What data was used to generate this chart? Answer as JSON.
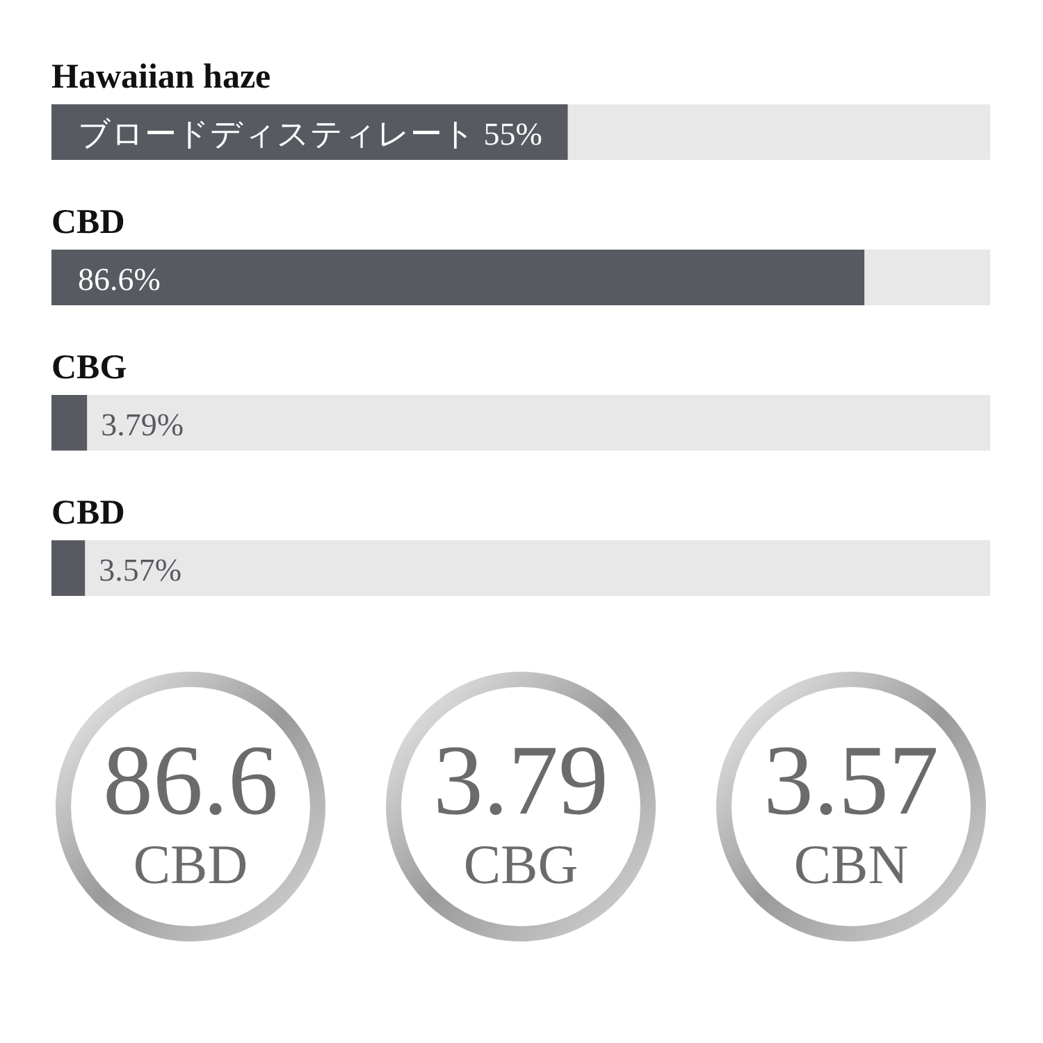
{
  "chart_data": [
    {
      "type": "bar",
      "orientation": "horizontal",
      "categories": [
        "Hawaiian haze",
        "CBD",
        "CBG",
        "CBD"
      ],
      "values": [
        55,
        86.6,
        3.79,
        3.57
      ],
      "value_labels": [
        "ブロードディスティレート 55%",
        "86.6%",
        "3.79%",
        "3.57%"
      ],
      "xlim": [
        0,
        100
      ],
      "tick_labels": false,
      "color": "#575a61"
    },
    {
      "type": "other",
      "categories": [
        "CBD",
        "CBG",
        "CBN"
      ],
      "values": [
        86.6,
        3.79,
        3.57
      ],
      "data_labels": true
    }
  ]
}
